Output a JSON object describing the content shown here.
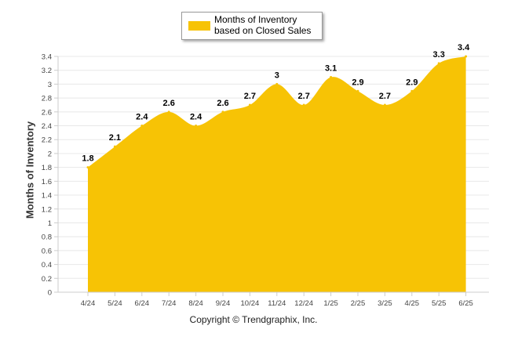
{
  "chart_data": {
    "type": "area",
    "categories": [
      "4/24",
      "5/24",
      "6/24",
      "7/24",
      "8/24",
      "9/24",
      "10/24",
      "11/24",
      "12/24",
      "1/25",
      "2/25",
      "3/25",
      "4/25",
      "5/25",
      "6/25"
    ],
    "series": [
      {
        "name": "Months of Inventory based on Closed Sales",
        "values": [
          1.8,
          2.1,
          2.4,
          2.6,
          2.4,
          2.6,
          2.7,
          3,
          2.7,
          3.1,
          2.9,
          2.7,
          2.9,
          3.3,
          3.4
        ]
      }
    ],
    "data_labels": [
      "1.8",
      "2.1",
      "2.4",
      "2.6",
      "2.4",
      "2.6",
      "2.7",
      "3",
      "2.7",
      "3.1",
      "2.9",
      "2.7",
      "2.9",
      "3.3",
      "3.4"
    ],
    "ylabel": "Months of Inventory",
    "xlabel": "",
    "ylim": [
      0,
      3.4
    ],
    "y_ticks": [
      "0",
      "0.2",
      "0.4",
      "0.6",
      "0.8",
      "1",
      "1.2",
      "1.4",
      "1.6",
      "1.8",
      "2",
      "2.2",
      "2.4",
      "2.6",
      "2.8",
      "3",
      "3.2",
      "3.4"
    ],
    "grid": true,
    "legend_position": "top-center",
    "colors": {
      "fill": "#f7c305",
      "grid": "#e8e8e8",
      "axis": "#cccccc"
    }
  },
  "footer": {
    "copyright": "Copyright © Trendgraphix, Inc."
  }
}
